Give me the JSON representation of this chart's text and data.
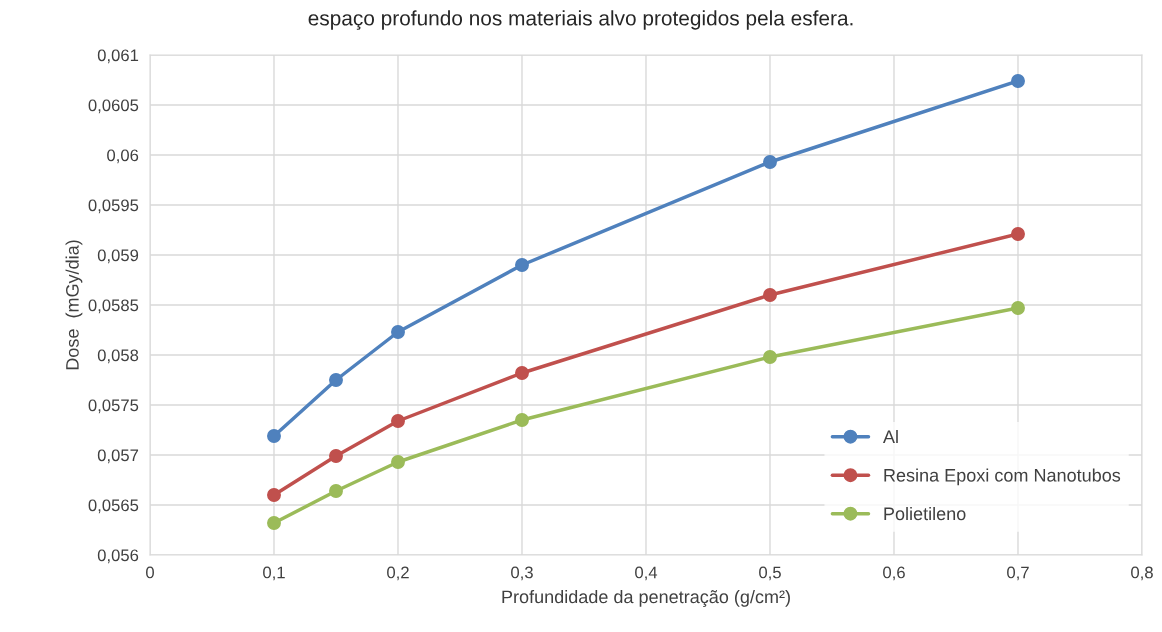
{
  "chart_data": {
    "type": "line",
    "title": "espaço profundo nos materiais alvo protegidos pela esfera.",
    "xlabel": "Profundidade da penetração (g/cm²)",
    "ylabel": "Dose  (mGy/dia)",
    "x": [
      0.1,
      0.15,
      0.2,
      0.3,
      0.5,
      0.7
    ],
    "series": [
      {
        "name": "Al",
        "color": "#4f81bd",
        "values": [
          0.05719,
          0.05775,
          0.05823,
          0.0589,
          0.05993,
          0.06074
        ]
      },
      {
        "name": "Resina Epoxi com Nanotubos",
        "color": "#c0504d",
        "values": [
          0.0566,
          0.05699,
          0.05734,
          0.05782,
          0.0586,
          0.05921
        ]
      },
      {
        "name": "Polietileno",
        "color": "#9bbb59",
        "values": [
          0.05632,
          0.05664,
          0.05693,
          0.05735,
          0.05798,
          0.05847
        ]
      }
    ],
    "xlim": [
      0,
      0.8
    ],
    "xticks": [
      0,
      {
        "value": 0.1,
        "label": "0,1"
      },
      {
        "value": 0.2,
        "label": "0,2"
      },
      {
        "value": 0.3,
        "label": "0,3"
      },
      {
        "value": 0.4,
        "label": "0,4"
      },
      {
        "value": 0.5,
        "label": "0,5"
      },
      {
        "value": 0.6,
        "label": "0,6"
      },
      {
        "value": 0.7,
        "label": "0,7"
      },
      {
        "value": 0.8,
        "label": "0,8"
      }
    ],
    "ylim": [
      0.056,
      0.061
    ],
    "yticks": [
      {
        "value": 0.056,
        "label": "0,056"
      },
      {
        "value": 0.0565,
        "label": "0,0565"
      },
      {
        "value": 0.057,
        "label": "0,057"
      },
      {
        "value": 0.0575,
        "label": "0,0575"
      },
      {
        "value": 0.058,
        "label": "0,058"
      },
      {
        "value": 0.0585,
        "label": "0,0585"
      },
      {
        "value": 0.059,
        "label": "0,059"
      },
      {
        "value": 0.0595,
        "label": "0,0595"
      },
      {
        "value": 0.06,
        "label": "0,06"
      },
      {
        "value": 0.0605,
        "label": "0,0605"
      },
      {
        "value": 0.061,
        "label": "0,061"
      }
    ],
    "grid": true,
    "legend": "bottom right",
    "marker": "circle",
    "line_style": "solid"
  }
}
